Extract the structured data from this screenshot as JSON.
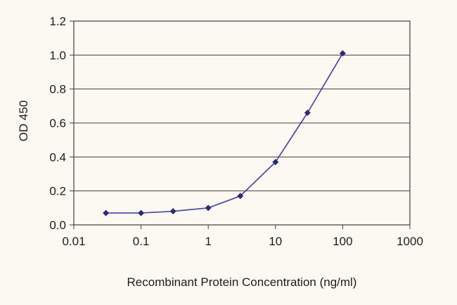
{
  "chart_data": {
    "type": "line",
    "title": "",
    "xlabel": "Recombinant Protein Concentration (ng/ml)",
    "ylabel": "OD 450",
    "x_scale": "log",
    "xlim": [
      0.01,
      1000
    ],
    "ylim": [
      0,
      1.2
    ],
    "x_ticks": [
      "0.01",
      "0.1",
      "1",
      "10",
      "100",
      "1000"
    ],
    "y_ticks": [
      "0.0",
      "0.2",
      "0.4",
      "0.6",
      "0.8",
      "1.0",
      "1.2"
    ],
    "grid": "horizontal",
    "legend_position": "none",
    "series": [
      {
        "name": "OD 450",
        "x": [
          0.03,
          0.1,
          0.3,
          1,
          3,
          10,
          30,
          100
        ],
        "y": [
          0.07,
          0.07,
          0.08,
          0.1,
          0.17,
          0.37,
          0.66,
          1.01
        ]
      }
    ],
    "colors": {
      "line": "#4747a0",
      "marker": "#2b2b72",
      "grid": "#3e3e3e",
      "background": "#fcf9f2",
      "text": "#1c1c1c"
    },
    "marker": "diamond"
  }
}
